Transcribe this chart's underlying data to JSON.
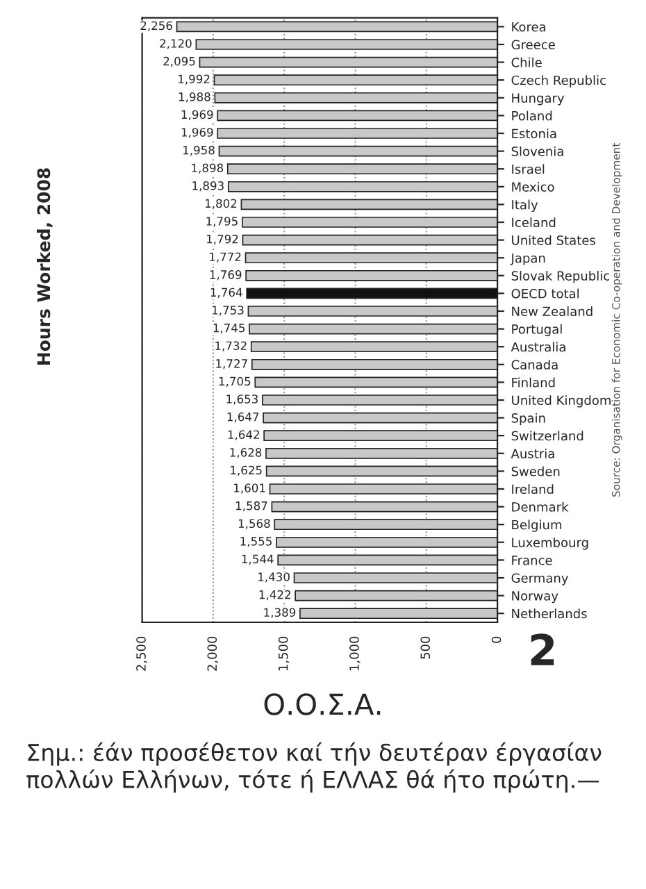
{
  "chart_data": {
    "type": "bar",
    "orientation": "horizontal",
    "title": "Hours Worked, 2008",
    "categories": [
      "Korea",
      "Greece",
      "Chile",
      "Czech Republic",
      "Hungary",
      "Poland",
      "Estonia",
      "Slovenia",
      "Israel",
      "Mexico",
      "Italy",
      "Iceland",
      "United States",
      "Japan",
      "Slovak Republic",
      "OECD total",
      "New Zealand",
      "Portugal",
      "Australia",
      "Canada",
      "Finland",
      "United Kingdom",
      "Spain",
      "Switzerland",
      "Austria",
      "Sweden",
      "Ireland",
      "Denmark",
      "Belgium",
      "Luxembourg",
      "France",
      "Germany",
      "Norway",
      "Netherlands"
    ],
    "values": [
      2256,
      2120,
      2095,
      1992,
      1988,
      1969,
      1969,
      1958,
      1898,
      1893,
      1802,
      1795,
      1792,
      1772,
      1769,
      1764,
      1753,
      1745,
      1732,
      1727,
      1705,
      1653,
      1647,
      1642,
      1628,
      1625,
      1601,
      1587,
      1568,
      1555,
      1544,
      1430,
      1422,
      1389
    ],
    "value_labels": [
      "2,256",
      "2,120",
      "2,095",
      "1,992",
      "1,988",
      "1,969",
      "1,969",
      "1,958",
      "1,898",
      "1,893",
      "1,802",
      "1,795",
      "1,792",
      "1,772",
      "1,769",
      "1,764",
      "1,753",
      "1,745",
      "1,732",
      "1,727",
      "1,705",
      "1,653",
      "1,647",
      "1,642",
      "1,628",
      "1,625",
      "1,601",
      "1,587",
      "1,568",
      "1,555",
      "1,544",
      "1,430",
      "1,422",
      "1,389"
    ],
    "colors": [
      "#c8c8c8",
      "#c8c8c8",
      "#c8c8c8",
      "#c8c8c8",
      "#c8c8c8",
      "#c8c8c8",
      "#c8c8c8",
      "#c8c8c8",
      "#c8c8c8",
      "#c8c8c8",
      "#c8c8c8",
      "#c8c8c8",
      "#c8c8c8",
      "#c8c8c8",
      "#c8c8c8",
      "#111111",
      "#c8c8c8",
      "#c8c8c8",
      "#c8c8c8",
      "#c8c8c8",
      "#c8c8c8",
      "#c8c8c8",
      "#c8c8c8",
      "#c8c8c8",
      "#c8c8c8",
      "#c8c8c8",
      "#c8c8c8",
      "#c8c8c8",
      "#c8c8c8",
      "#c8c8c8",
      "#c8c8c8",
      "#c8c8c8",
      "#c8c8c8",
      "#c8c8c8"
    ],
    "xlim": [
      2500,
      0
    ],
    "xticks": [
      {
        "value": 2500,
        "label": "2,500"
      },
      {
        "value": 2000,
        "label": "2,000"
      },
      {
        "value": 1500,
        "label": "1,500"
      },
      {
        "value": 1000,
        "label": "1,000"
      },
      500,
      0
    ],
    "grid": "x",
    "annotations": [
      "Source: Organisation for Economic Co-operation and Development",
      "2",
      "Ο.Ο.Σ.Α.",
      "Σημ.: έάν προσέθετον καί τήν δευτέραν έργασίαν πολλών Ελλήνων, τότε ή ΕΛΛΑΣ θά ήτο πρώτη.—"
    ]
  }
}
